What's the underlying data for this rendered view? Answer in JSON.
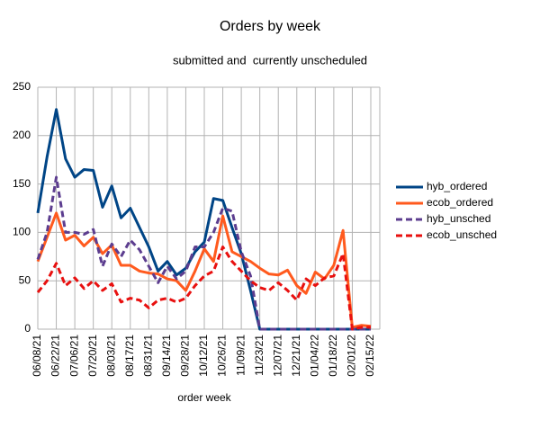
{
  "chart_data": {
    "type": "line",
    "title": "Orders by week",
    "subtitle": "submitted and  currently unscheduled",
    "x_label": "order week",
    "categories": [
      "06/08/21",
      null,
      "06/22/21",
      null,
      "07/06/21",
      null,
      "07/20/21",
      null,
      "08/03/21",
      null,
      "08/17/21",
      null,
      "08/31/21",
      null,
      "09/14/21",
      null,
      "09/28/21",
      null,
      "10/12/21",
      null,
      "10/26/21",
      null,
      "11/09/21",
      null,
      "11/23/21",
      null,
      "12/07/21",
      null,
      "12/21/21",
      null,
      "01/04/22",
      null,
      "01/18/22",
      null,
      "02/01/22",
      null,
      "02/15/22"
    ],
    "series": [
      {
        "name": "hyb_ordered",
        "color": "#004586",
        "dashed": false,
        "values": [
          120,
          178,
          227,
          176,
          157,
          165,
          164,
          126,
          148,
          115,
          125,
          105,
          85,
          60,
          70,
          56,
          63,
          80,
          90,
          135,
          133,
          105,
          78,
          40,
          0,
          0,
          0,
          0,
          0,
          0,
          0,
          0,
          0,
          0,
          0,
          0,
          0
        ]
      },
      {
        "name": "ecob_ordered",
        "color": "#ff5a1e",
        "dashed": false,
        "values": [
          70,
          95,
          120,
          92,
          97,
          86,
          95,
          78,
          87,
          66,
          66,
          60,
          58,
          57,
          52,
          50,
          40,
          60,
          83,
          70,
          117,
          80,
          75,
          70,
          63,
          57,
          56,
          61,
          45,
          37,
          59,
          52,
          66,
          102,
          2,
          4,
          3
        ]
      },
      {
        "name": "hyb_unsched",
        "color": "#5c3d8f",
        "dashed": true,
        "values": [
          72,
          100,
          157,
          100,
          100,
          98,
          103,
          65,
          88,
          75,
          92,
          82,
          65,
          48,
          65,
          52,
          60,
          85,
          85,
          100,
          125,
          122,
          80,
          55,
          0,
          0,
          0,
          0,
          0,
          0,
          0,
          0,
          0,
          0,
          0,
          0,
          0
        ]
      },
      {
        "name": "ecob_unsched",
        "color": "#e8100f",
        "dashed": true,
        "values": [
          38,
          50,
          68,
          45,
          53,
          42,
          50,
          40,
          47,
          28,
          32,
          30,
          22,
          30,
          32,
          28,
          32,
          45,
          55,
          60,
          85,
          70,
          60,
          50,
          43,
          40,
          48,
          40,
          30,
          52,
          45,
          53,
          55,
          78,
          0,
          2,
          2
        ]
      }
    ],
    "ylim": [
      0,
      250
    ],
    "yticks": [
      0,
      50,
      100,
      150,
      200,
      250
    ],
    "grid": true,
    "legend": "right"
  }
}
